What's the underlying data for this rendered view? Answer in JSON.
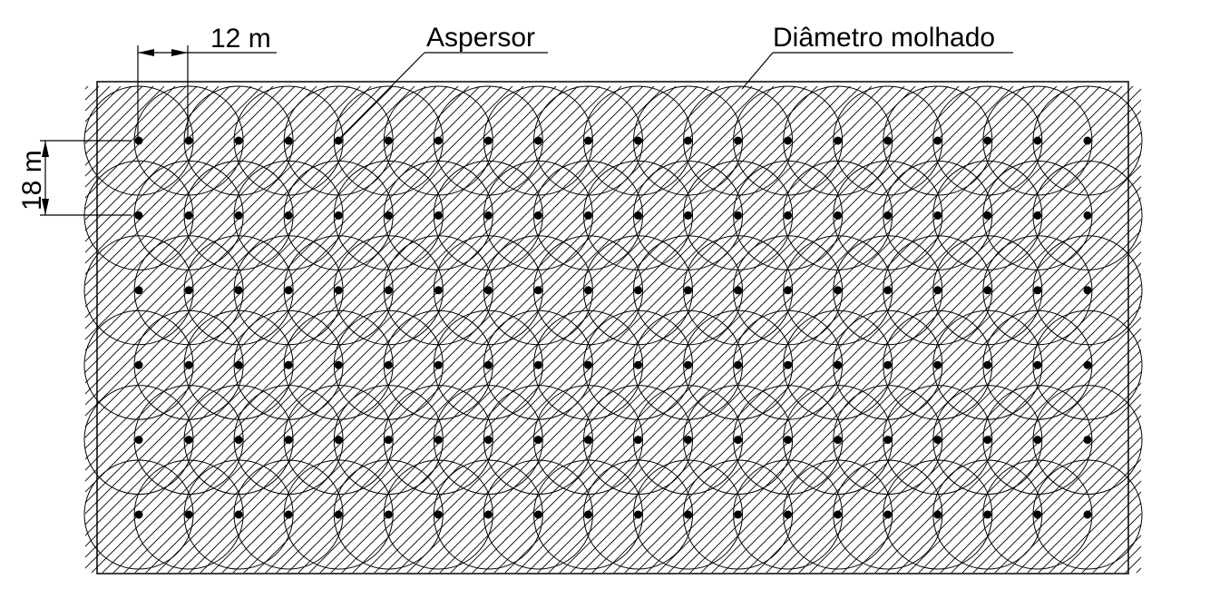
{
  "labels": {
    "spacing_x": "12 m",
    "spacing_y": "18 m",
    "sprinkler": "Aspersor",
    "wetted_diameter": "Diâmetro molhado"
  },
  "layout_grid": {
    "rows": 6,
    "columns": 20
  },
  "colors": {
    "line": "#000000",
    "background": "#ffffff"
  }
}
